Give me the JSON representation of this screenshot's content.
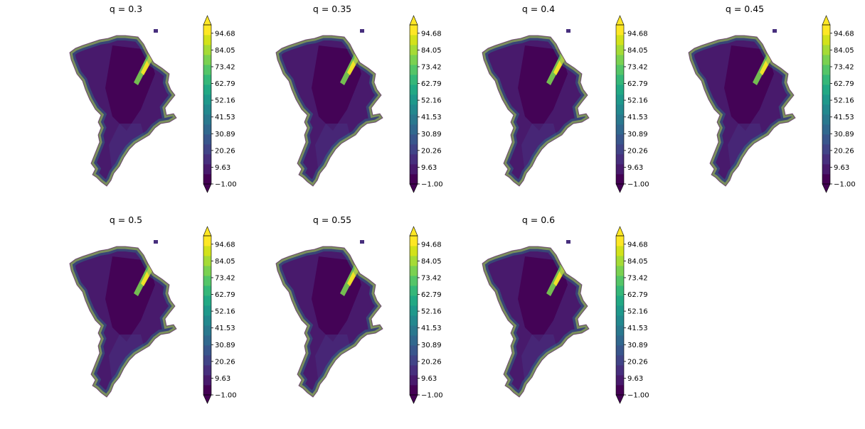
{
  "figure": {
    "panel_titles": [
      "q = 0.3",
      "q = 0.35",
      "q = 0.4",
      "q = 0.45",
      "q = 0.5",
      "q = 0.55",
      "q = 0.6"
    ]
  },
  "colormap": {
    "name": "viridis",
    "extend": "both",
    "levels": 16,
    "colors": [
      "#440154",
      "#481a6c",
      "#472f7d",
      "#414487",
      "#39568c",
      "#31688e",
      "#2a788e",
      "#23888e",
      "#1f988b",
      "#22a884",
      "#35b779",
      "#54c568",
      "#7ad151",
      "#a5db36",
      "#d2e21b",
      "#fde725"
    ]
  },
  "chart_data": [
    {
      "type": "heatmap",
      "title": "q = 0.3",
      "colorbar": {
        "range": [
          -1.0,
          100.0
        ],
        "ticks": [
          "94.68",
          "84.05",
          "73.42",
          "62.79",
          "52.16",
          "41.53",
          "30.89",
          "20.26",
          "9.63",
          "−1.00"
        ]
      }
    },
    {
      "type": "heatmap",
      "title": "q = 0.35",
      "colorbar": {
        "range": [
          -1.0,
          100.0
        ],
        "ticks": [
          "94.68",
          "84.05",
          "73.42",
          "62.79",
          "52.16",
          "41.53",
          "30.89",
          "20.26",
          "9.63",
          "−1.00"
        ]
      }
    },
    {
      "type": "heatmap",
      "title": "q = 0.4",
      "colorbar": {
        "range": [
          -1.0,
          100.0
        ],
        "ticks": [
          "94.68",
          "84.05",
          "73.42",
          "62.79",
          "52.16",
          "41.53",
          "30.89",
          "20.26",
          "9.63",
          "−1.00"
        ]
      }
    },
    {
      "type": "heatmap",
      "title": "q = 0.45",
      "colorbar": {
        "range": [
          -1.0,
          100.0
        ],
        "ticks": [
          "94.68",
          "84.05",
          "73.42",
          "62.79",
          "52.16",
          "41.53",
          "30.89",
          "20.26",
          "9.63",
          "−1.00"
        ]
      }
    },
    {
      "type": "heatmap",
      "title": "q = 0.5",
      "colorbar": {
        "range": [
          -1.0,
          100.0
        ],
        "ticks": [
          "94.68",
          "84.05",
          "73.42",
          "62.79",
          "52.16",
          "41.53",
          "30.89",
          "20.26",
          "9.63",
          "−1.00"
        ]
      }
    },
    {
      "type": "heatmap",
      "title": "q = 0.55",
      "colorbar": {
        "range": [
          -1.0,
          100.0
        ],
        "ticks": [
          "94.68",
          "84.05",
          "73.42",
          "62.79",
          "52.16",
          "41.53",
          "30.89",
          "20.26",
          "9.63",
          "−1.00"
        ]
      }
    },
    {
      "type": "heatmap",
      "title": "q = 0.6",
      "colorbar": {
        "range": [
          -1.0,
          100.0
        ],
        "ticks": [
          "94.68",
          "84.05",
          "73.42",
          "62.79",
          "52.16",
          "41.53",
          "30.89",
          "20.26",
          "9.63",
          "−1.00"
        ]
      }
    }
  ]
}
